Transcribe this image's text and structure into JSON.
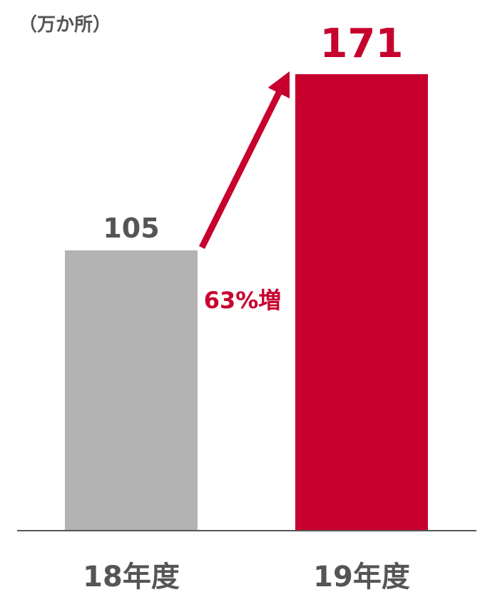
{
  "chart_data": {
    "type": "bar",
    "unit_label": "（万か所）",
    "categories": [
      "18年度",
      "19年度"
    ],
    "values": [
      105,
      171
    ],
    "value_labels": [
      "105",
      "171"
    ],
    "ylim": [
      0,
      171
    ],
    "grid": false,
    "annotation": {
      "text": "63%増",
      "from_category": "18年度",
      "to_category": "19年度"
    },
    "colors": {
      "bars": [
        "#b3b3b3",
        "#c8002e"
      ],
      "value_labels": [
        "#555555",
        "#c8002e"
      ],
      "category_labels": "#555555",
      "annotation": "#c8002e",
      "axis": "#555555"
    }
  }
}
